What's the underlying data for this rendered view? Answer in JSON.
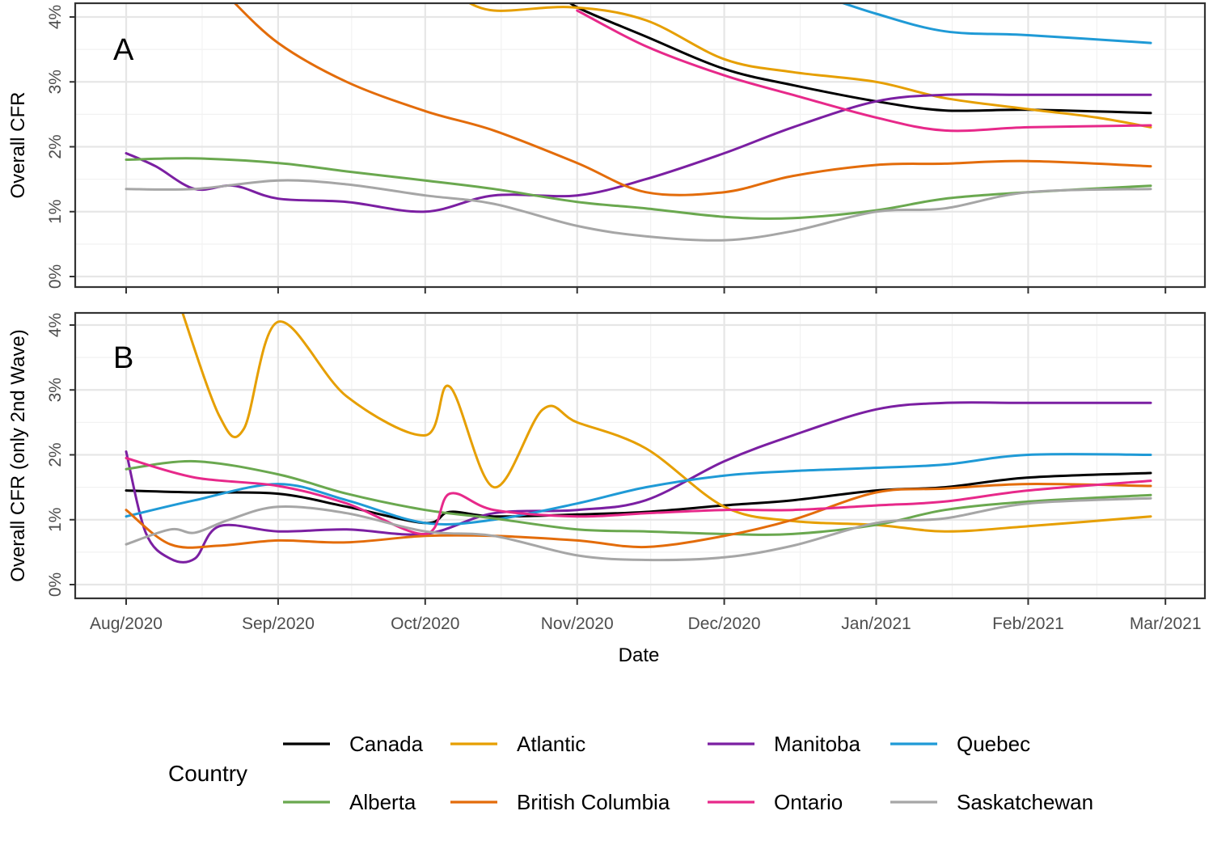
{
  "chart_data": [
    {
      "type": "line",
      "panel_tag": "A",
      "ylabel": "Overall CFR",
      "ylim": [
        0,
        4
      ],
      "yticks": [
        "0%",
        "1%",
        "2%",
        "3%",
        "4%"
      ],
      "grid": true,
      "series": [
        {
          "name": "Canada",
          "color": "#000000",
          "points": [
            [
              "2020-10-28",
              4.4
            ],
            [
              "2020-11-01",
              4.15
            ],
            [
              "2020-11-15",
              3.7
            ],
            [
              "2020-12-01",
              3.2
            ],
            [
              "2020-12-15",
              2.95
            ],
            [
              "2021-01-01",
              2.7
            ],
            [
              "2021-01-15",
              2.56
            ],
            [
              "2021-02-01",
              2.57
            ],
            [
              "2021-02-26",
              2.52
            ]
          ]
        },
        {
          "name": "Atlantic",
          "color": "#E69F00",
          "points": [
            [
              "2020-10-08",
              4.3
            ],
            [
              "2020-10-15",
              4.1
            ],
            [
              "2020-10-31",
              4.15
            ],
            [
              "2020-11-15",
              3.95
            ],
            [
              "2020-12-01",
              3.35
            ],
            [
              "2020-12-15",
              3.15
            ],
            [
              "2021-01-01",
              3.0
            ],
            [
              "2021-01-15",
              2.75
            ],
            [
              "2021-02-01",
              2.58
            ],
            [
              "2021-02-15",
              2.45
            ],
            [
              "2021-02-26",
              2.3
            ]
          ]
        },
        {
          "name": "Manitoba",
          "color": "#7B1FA2",
          "points": [
            [
              "2020-08-01",
              1.9
            ],
            [
              "2020-08-07",
              1.7
            ],
            [
              "2020-08-15",
              1.35
            ],
            [
              "2020-08-23",
              1.4
            ],
            [
              "2020-09-01",
              1.2
            ],
            [
              "2020-09-15",
              1.15
            ],
            [
              "2020-10-01",
              1.0
            ],
            [
              "2020-10-15",
              1.25
            ],
            [
              "2020-11-01",
              1.25
            ],
            [
              "2020-11-15",
              1.5
            ],
            [
              "2020-12-01",
              1.9
            ],
            [
              "2020-12-15",
              2.3
            ],
            [
              "2021-01-01",
              2.7
            ],
            [
              "2021-01-15",
              2.8
            ],
            [
              "2021-02-01",
              2.8
            ],
            [
              "2021-02-26",
              2.8
            ]
          ]
        },
        {
          "name": "Quebec",
          "color": "#1F9AD6",
          "points": [
            [
              "2020-12-20",
              4.35
            ],
            [
              "2021-01-01",
              4.05
            ],
            [
              "2021-01-15",
              3.78
            ],
            [
              "2021-02-01",
              3.72
            ],
            [
              "2021-02-26",
              3.6
            ]
          ]
        },
        {
          "name": "Alberta",
          "color": "#6AA84F",
          "points": [
            [
              "2020-08-01",
              1.8
            ],
            [
              "2020-08-15",
              1.82
            ],
            [
              "2020-09-01",
              1.75
            ],
            [
              "2020-09-15",
              1.62
            ],
            [
              "2020-10-01",
              1.48
            ],
            [
              "2020-10-15",
              1.35
            ],
            [
              "2020-11-01",
              1.15
            ],
            [
              "2020-11-15",
              1.05
            ],
            [
              "2020-12-01",
              0.92
            ],
            [
              "2020-12-15",
              0.9
            ],
            [
              "2021-01-01",
              1.02
            ],
            [
              "2021-01-15",
              1.2
            ],
            [
              "2021-02-01",
              1.3
            ],
            [
              "2021-02-26",
              1.4
            ]
          ]
        },
        {
          "name": "British Columbia",
          "color": "#E36C0A",
          "points": [
            [
              "2020-08-22",
              4.3
            ],
            [
              "2020-09-01",
              3.6
            ],
            [
              "2020-09-15",
              3.0
            ],
            [
              "2020-10-01",
              2.55
            ],
            [
              "2020-10-15",
              2.25
            ],
            [
              "2020-11-01",
              1.75
            ],
            [
              "2020-11-15",
              1.3
            ],
            [
              "2020-12-01",
              1.3
            ],
            [
              "2020-12-15",
              1.55
            ],
            [
              "2021-01-01",
              1.72
            ],
            [
              "2021-01-15",
              1.74
            ],
            [
              "2021-02-01",
              1.78
            ],
            [
              "2021-02-26",
              1.7
            ]
          ]
        },
        {
          "name": "Ontario",
          "color": "#E7298A",
          "points": [
            [
              "2020-11-01",
              4.1
            ],
            [
              "2020-11-15",
              3.55
            ],
            [
              "2020-12-01",
              3.1
            ],
            [
              "2020-12-15",
              2.8
            ],
            [
              "2021-01-01",
              2.45
            ],
            [
              "2021-01-15",
              2.25
            ],
            [
              "2021-02-01",
              2.3
            ],
            [
              "2021-02-26",
              2.33
            ]
          ]
        },
        {
          "name": "Saskatchewan",
          "color": "#A6A6A6",
          "points": [
            [
              "2020-08-01",
              1.35
            ],
            [
              "2020-08-15",
              1.35
            ],
            [
              "2020-09-01",
              1.48
            ],
            [
              "2020-09-15",
              1.42
            ],
            [
              "2020-10-01",
              1.25
            ],
            [
              "2020-10-15",
              1.12
            ],
            [
              "2020-11-01",
              0.78
            ],
            [
              "2020-11-15",
              0.62
            ],
            [
              "2020-12-01",
              0.56
            ],
            [
              "2020-12-15",
              0.7
            ],
            [
              "2021-01-01",
              1.0
            ],
            [
              "2021-01-15",
              1.05
            ],
            [
              "2021-02-01",
              1.3
            ],
            [
              "2021-02-26",
              1.35
            ]
          ]
        }
      ]
    },
    {
      "type": "line",
      "panel_tag": "B",
      "ylabel": "Overall CFR (only 2nd Wave)",
      "ylim": [
        0,
        4
      ],
      "yticks": [
        "0%",
        "1%",
        "2%",
        "3%",
        "4%"
      ],
      "grid": true,
      "series": [
        {
          "name": "Canada",
          "color": "#000000",
          "points": [
            [
              "2020-08-01",
              1.45
            ],
            [
              "2020-08-15",
              1.42
            ],
            [
              "2020-09-01",
              1.4
            ],
            [
              "2020-09-15",
              1.2
            ],
            [
              "2020-10-01",
              0.95
            ],
            [
              "2020-10-06",
              1.12
            ],
            [
              "2020-10-15",
              1.05
            ],
            [
              "2020-11-01",
              1.08
            ],
            [
              "2020-11-15",
              1.12
            ],
            [
              "2020-12-01",
              1.22
            ],
            [
              "2020-12-15",
              1.3
            ],
            [
              "2021-01-01",
              1.45
            ],
            [
              "2021-01-15",
              1.5
            ],
            [
              "2021-02-01",
              1.65
            ],
            [
              "2021-02-26",
              1.72
            ]
          ]
        },
        {
          "name": "Atlantic",
          "color": "#E69F00",
          "points": [
            [
              "2020-08-12",
              4.3
            ],
            [
              "2020-08-20",
              2.6
            ],
            [
              "2020-08-25",
              2.4
            ],
            [
              "2020-09-01",
              4.05
            ],
            [
              "2020-09-15",
              2.9
            ],
            [
              "2020-10-01",
              2.3
            ],
            [
              "2020-10-06",
              3.05
            ],
            [
              "2020-10-15",
              1.5
            ],
            [
              "2020-10-25",
              2.7
            ],
            [
              "2020-11-01",
              2.5
            ],
            [
              "2020-11-15",
              2.1
            ],
            [
              "2020-12-01",
              1.2
            ],
            [
              "2020-12-15",
              0.98
            ],
            [
              "2021-01-01",
              0.92
            ],
            [
              "2021-01-15",
              0.82
            ],
            [
              "2021-02-01",
              0.9
            ],
            [
              "2021-02-26",
              1.05
            ]
          ]
        },
        {
          "name": "Manitoba",
          "color": "#7B1FA2",
          "points": [
            [
              "2020-08-01",
              2.05
            ],
            [
              "2020-08-05",
              0.8
            ],
            [
              "2020-08-10",
              0.4
            ],
            [
              "2020-08-15",
              0.4
            ],
            [
              "2020-08-20",
              0.9
            ],
            [
              "2020-09-01",
              0.82
            ],
            [
              "2020-09-15",
              0.85
            ],
            [
              "2020-10-01",
              0.78
            ],
            [
              "2020-10-15",
              1.1
            ],
            [
              "2020-11-01",
              1.15
            ],
            [
              "2020-11-15",
              1.3
            ],
            [
              "2020-12-01",
              1.9
            ],
            [
              "2020-12-15",
              2.3
            ],
            [
              "2021-01-01",
              2.7
            ],
            [
              "2021-01-15",
              2.8
            ],
            [
              "2021-02-01",
              2.8
            ],
            [
              "2021-02-26",
              2.8
            ]
          ]
        },
        {
          "name": "Quebec",
          "color": "#1F9AD6",
          "points": [
            [
              "2020-08-01",
              1.05
            ],
            [
              "2020-08-15",
              1.3
            ],
            [
              "2020-09-01",
              1.55
            ],
            [
              "2020-09-15",
              1.3
            ],
            [
              "2020-10-01",
              0.95
            ],
            [
              "2020-10-15",
              1.0
            ],
            [
              "2020-11-01",
              1.25
            ],
            [
              "2020-11-15",
              1.5
            ],
            [
              "2020-12-01",
              1.68
            ],
            [
              "2020-12-15",
              1.75
            ],
            [
              "2021-01-01",
              1.8
            ],
            [
              "2021-01-15",
              1.85
            ],
            [
              "2021-02-01",
              2.0
            ],
            [
              "2021-02-26",
              2.0
            ]
          ]
        },
        {
          "name": "Alberta",
          "color": "#6AA84F",
          "points": [
            [
              "2020-08-01",
              1.78
            ],
            [
              "2020-08-15",
              1.9
            ],
            [
              "2020-09-01",
              1.7
            ],
            [
              "2020-09-15",
              1.4
            ],
            [
              "2020-10-01",
              1.15
            ],
            [
              "2020-10-15",
              1.02
            ],
            [
              "2020-11-01",
              0.85
            ],
            [
              "2020-11-15",
              0.82
            ],
            [
              "2020-12-01",
              0.78
            ],
            [
              "2020-12-15",
              0.78
            ],
            [
              "2021-01-01",
              0.92
            ],
            [
              "2021-01-15",
              1.15
            ],
            [
              "2021-02-01",
              1.28
            ],
            [
              "2021-02-26",
              1.38
            ]
          ]
        },
        {
          "name": "British Columbia",
          "color": "#E36C0A",
          "points": [
            [
              "2020-08-01",
              1.15
            ],
            [
              "2020-08-10",
              0.62
            ],
            [
              "2020-08-20",
              0.6
            ],
            [
              "2020-09-01",
              0.68
            ],
            [
              "2020-09-15",
              0.65
            ],
            [
              "2020-10-01",
              0.75
            ],
            [
              "2020-10-15",
              0.75
            ],
            [
              "2020-11-01",
              0.68
            ],
            [
              "2020-11-15",
              0.58
            ],
            [
              "2020-12-01",
              0.75
            ],
            [
              "2020-12-15",
              1.0
            ],
            [
              "2021-01-01",
              1.42
            ],
            [
              "2021-01-15",
              1.48
            ],
            [
              "2021-02-01",
              1.55
            ],
            [
              "2021-02-26",
              1.52
            ]
          ]
        },
        {
          "name": "Ontario",
          "color": "#E7298A",
          "points": [
            [
              "2020-08-01",
              1.95
            ],
            [
              "2020-08-15",
              1.65
            ],
            [
              "2020-09-01",
              1.52
            ],
            [
              "2020-09-15",
              1.25
            ],
            [
              "2020-10-01",
              0.78
            ],
            [
              "2020-10-06",
              1.4
            ],
            [
              "2020-10-15",
              1.15
            ],
            [
              "2020-11-01",
              1.05
            ],
            [
              "2020-11-15",
              1.1
            ],
            [
              "2020-12-01",
              1.15
            ],
            [
              "2020-12-15",
              1.15
            ],
            [
              "2021-01-01",
              1.22
            ],
            [
              "2021-01-15",
              1.28
            ],
            [
              "2021-02-01",
              1.45
            ],
            [
              "2021-02-26",
              1.6
            ]
          ]
        },
        {
          "name": "Saskatchewan",
          "color": "#A6A6A6",
          "points": [
            [
              "2020-08-01",
              0.62
            ],
            [
              "2020-08-10",
              0.85
            ],
            [
              "2020-08-15",
              0.8
            ],
            [
              "2020-08-22",
              1.0
            ],
            [
              "2020-09-01",
              1.2
            ],
            [
              "2020-09-15",
              1.1
            ],
            [
              "2020-10-01",
              0.82
            ],
            [
              "2020-10-15",
              0.75
            ],
            [
              "2020-11-01",
              0.45
            ],
            [
              "2020-11-15",
              0.38
            ],
            [
              "2020-12-01",
              0.42
            ],
            [
              "2020-12-15",
              0.6
            ],
            [
              "2021-01-01",
              0.95
            ],
            [
              "2021-01-15",
              1.02
            ],
            [
              "2021-02-01",
              1.25
            ],
            [
              "2021-02-26",
              1.33
            ]
          ]
        }
      ]
    }
  ],
  "x_axis": {
    "label": "Date",
    "range": [
      "2020-08-01",
      "2021-03-01"
    ],
    "ticks": [
      {
        "date": "2020-08-01",
        "label": "Aug/2020"
      },
      {
        "date": "2020-09-01",
        "label": "Sep/2020"
      },
      {
        "date": "2020-10-01",
        "label": "Oct/2020"
      },
      {
        "date": "2020-11-01",
        "label": "Nov/2020"
      },
      {
        "date": "2020-12-01",
        "label": "Dec/2020"
      },
      {
        "date": "2021-01-01",
        "label": "Jan/2021"
      },
      {
        "date": "2021-02-01",
        "label": "Feb/2021"
      },
      {
        "date": "2021-03-01",
        "label": "Mar/2021"
      }
    ]
  },
  "legend": {
    "title": "Country",
    "placement": "bottom",
    "entries": [
      {
        "name": "Canada",
        "color": "#000000"
      },
      {
        "name": "Atlantic",
        "color": "#E69F00"
      },
      {
        "name": "Manitoba",
        "color": "#7B1FA2"
      },
      {
        "name": "Quebec",
        "color": "#1F9AD6"
      },
      {
        "name": "Alberta",
        "color": "#6AA84F"
      },
      {
        "name": "British Columbia",
        "color": "#E36C0A"
      },
      {
        "name": "Ontario",
        "color": "#E7298A"
      },
      {
        "name": "Saskatchewan",
        "color": "#A6A6A6"
      }
    ]
  }
}
